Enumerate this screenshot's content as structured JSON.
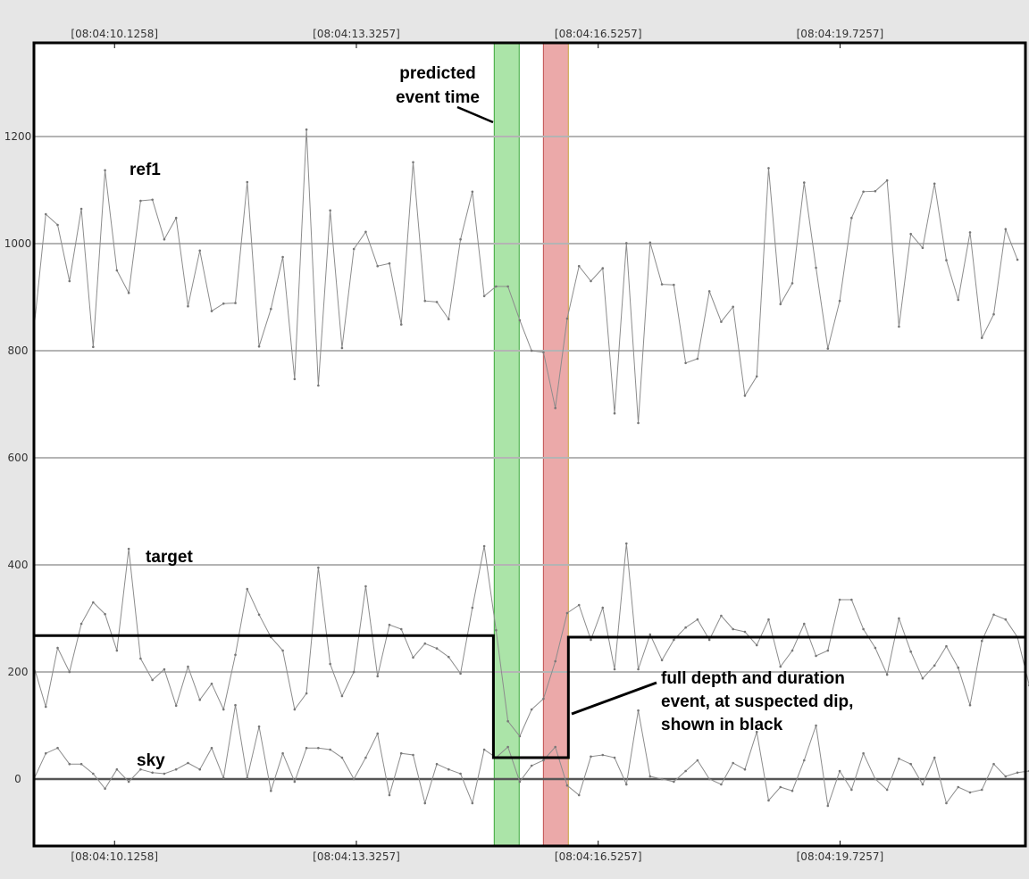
{
  "chart_data": {
    "type": "line",
    "title": "",
    "xlabel": "",
    "ylabel": "",
    "ylim": [
      -125,
      1375
    ],
    "y_ticks": [
      0,
      200,
      400,
      600,
      800,
      1000,
      1200
    ],
    "grid": true,
    "x_tick_labels": [
      "[08:04:10.1258]",
      "[08:04:13.3257]",
      "[08:04:16.5257]",
      "[08:04:19.7257]"
    ],
    "x_tick_positions": [
      10,
      40,
      70,
      100
    ],
    "x_range": [
      0,
      123
    ],
    "colors": {
      "series": "#8c8c8c",
      "grid": "#b4b4b4",
      "zero_line": "#555555",
      "event_line": "#000000",
      "green_band": "#7ed67a",
      "red_band": "#e07b7b",
      "background": "#ffffff"
    },
    "bands": [
      {
        "label": "predicted event time",
        "color": "#7ed67a",
        "x_start": 57.1,
        "x_end": 60.2
      },
      {
        "label": "",
        "color": "#e07b7b",
        "x_start": 63.2,
        "x_end": 66.3
      }
    ],
    "series": [
      {
        "name": "ref1",
        "values": [
          840,
          1055,
          1035,
          930,
          1065,
          807,
          1137,
          950,
          908,
          1080,
          1082,
          1008,
          1048,
          883,
          987,
          874,
          888,
          889,
          1115,
          808,
          878,
          975,
          747,
          1213,
          735,
          1062,
          805,
          990,
          1022,
          958,
          963,
          849,
          1152,
          893,
          891,
          859,
          1008,
          1097,
          902,
          920,
          920,
          857,
          800,
          797,
          693,
          860,
          958,
          930,
          954,
          683,
          1001,
          665,
          1002,
          924,
          923,
          777,
          785,
          911,
          854,
          882,
          716,
          752,
          1141,
          887,
          926,
          1114,
          955,
          804,
          893,
          1048,
          1097,
          1098,
          1118,
          845,
          1018,
          992,
          1112,
          969,
          895,
          1021,
          824,
          868,
          1027,
          970
        ]
      },
      {
        "name": "target",
        "values": [
          210,
          135,
          245,
          200,
          290,
          330,
          308,
          240,
          430,
          225,
          185,
          205,
          137,
          210,
          148,
          178,
          130,
          232,
          355,
          307,
          265,
          240,
          130,
          160,
          395,
          215,
          155,
          200,
          360,
          192,
          288,
          280,
          227,
          253,
          244,
          228,
          197,
          320,
          435,
          278,
          108,
          80,
          130,
          150,
          220,
          310,
          325,
          260,
          320,
          205,
          440,
          205,
          270,
          222,
          260,
          283,
          298,
          260,
          305,
          280,
          275,
          250,
          298,
          210,
          240,
          290,
          230,
          240,
          335,
          335,
          280,
          245,
          195,
          300,
          238,
          188,
          212,
          248,
          208,
          138,
          258,
          307,
          298,
          265,
          175,
          198
        ]
      },
      {
        "name": "sky",
        "values": [
          0,
          48,
          58,
          28,
          28,
          10,
          -18,
          18,
          -5,
          18,
          12,
          10,
          18,
          30,
          18,
          58,
          2,
          138,
          2,
          98,
          -22,
          48,
          -5,
          58,
          58,
          55,
          40,
          0,
          40,
          85,
          -30,
          48,
          45,
          -45,
          28,
          18,
          10,
          -45,
          55,
          40,
          60,
          -5,
          25,
          35,
          60,
          -12,
          -30,
          42,
          45,
          40,
          -10,
          128,
          5,
          0,
          -5,
          15,
          35,
          0,
          -10,
          30,
          18,
          88,
          -40,
          -15,
          -22,
          35,
          100,
          -50,
          15,
          -20,
          48,
          0,
          -20,
          38,
          28,
          -10,
          40,
          -45,
          -15,
          -25,
          -20,
          28,
          5,
          12,
          15
        ]
      },
      {
        "name": "event",
        "step_points": [
          [
            0,
            268
          ],
          [
            57.0,
            268
          ],
          [
            57.0,
            40
          ],
          [
            66.3,
            40
          ],
          [
            66.3,
            265
          ],
          [
            123,
            265
          ]
        ]
      }
    ],
    "annotations": [
      {
        "text_lines": [
          "predicted",
          "event time"
        ]
      },
      {
        "text_lines": [
          "full depth and duration",
          "event, at suspected dip,",
          "shown in black"
        ]
      }
    ]
  }
}
